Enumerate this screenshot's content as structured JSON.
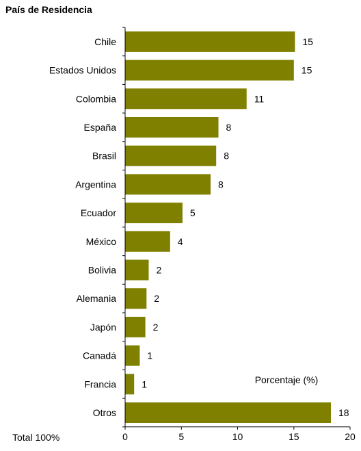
{
  "chart_data": {
    "type": "bar",
    "orientation": "horizontal",
    "title": "País de Residencia",
    "xlabel": "Porcentaje (%)",
    "note": "Total 100%",
    "categories": [
      "Chile",
      "Estados Unidos",
      "Colombia",
      "España",
      "Brasil",
      "Argentina",
      "Ecuador",
      "México",
      "Bolivia",
      "Alemania",
      "Japón",
      "Canadá",
      "Francia",
      "Otros"
    ],
    "values": [
      15.1,
      15.0,
      10.8,
      8.3,
      8.1,
      7.6,
      5.1,
      4.0,
      2.1,
      1.9,
      1.8,
      1.3,
      0.8,
      18.3
    ],
    "data_labels": [
      "15",
      "15",
      "11",
      "8",
      "8",
      "8",
      "5",
      "4",
      "2",
      "2",
      "2",
      "1",
      "1",
      "18"
    ],
    "xlim": [
      0,
      20
    ],
    "xticks": [
      "0",
      "5",
      "10",
      "15",
      "20"
    ],
    "bar_color": "#808000",
    "grid": false
  }
}
